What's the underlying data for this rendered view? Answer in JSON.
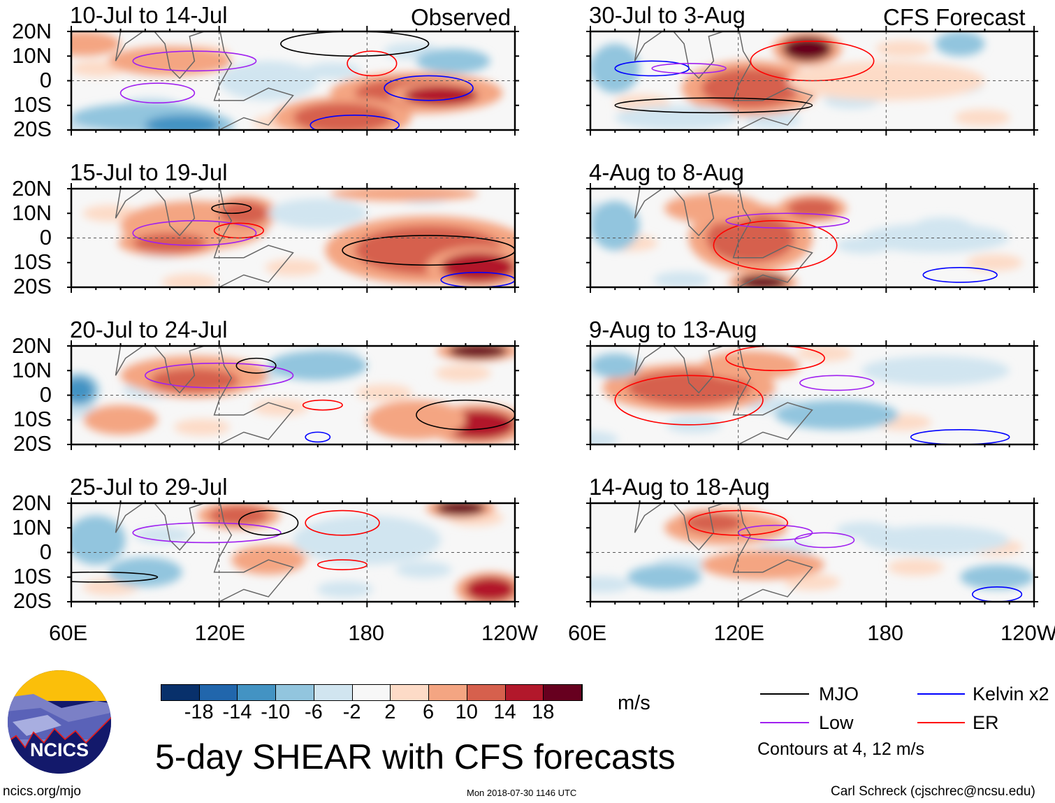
{
  "figure_title": "5-day SHEAR with CFS forecasts",
  "units": "m/s",
  "observed_label": "Observed",
  "forecast_label": "CFS Forecast",
  "panels_left": [
    {
      "title": "10-Jul to 14-Jul"
    },
    {
      "title": "15-Jul to 19-Jul"
    },
    {
      "title": "20-Jul to 24-Jul"
    },
    {
      "title": "25-Jul to 29-Jul"
    }
  ],
  "panels_right": [
    {
      "title": "30-Jul to 3-Aug"
    },
    {
      "title": "4-Aug to 8-Aug"
    },
    {
      "title": "9-Aug to 13-Aug"
    },
    {
      "title": "14-Aug to 18-Aug"
    }
  ],
  "lat_labels": [
    "20N",
    "10N",
    "0",
    "10S",
    "20S"
  ],
  "lon_labels": [
    "60E",
    "120E",
    "180",
    "120W"
  ],
  "colorbar": {
    "ticks": [
      "-18",
      "-14",
      "-10",
      "-6",
      "-2",
      "2",
      "6",
      "10",
      "14",
      "18"
    ],
    "colors": [
      "#08306b",
      "#2166ac",
      "#4393c3",
      "#92c5de",
      "#d1e5f0",
      "#f7f7f7",
      "#fddbc7",
      "#f4a582",
      "#d6604d",
      "#b2182b",
      "#67001f"
    ]
  },
  "legend": {
    "items": [
      {
        "label": "MJO",
        "color": "#000000"
      },
      {
        "label": "Kelvin x2",
        "color": "#0000ff"
      },
      {
        "label": "Low",
        "color": "#a020f0"
      },
      {
        "label": "ER",
        "color": "#ff0000"
      }
    ],
    "note": "Contours at 4, 12 m/s"
  },
  "footer": {
    "url": "ncics.org/mjo",
    "timestamp": "Mon 2018-07-30 1146 UTC",
    "credit": "Carl Schreck (cjschrec@ncsu.edu)"
  },
  "logo_text": "NCICS",
  "chart_data": {
    "type": "heatmap",
    "units": "m/s",
    "lon_range": [
      60,
      240
    ],
    "lat_range": [
      -20,
      20
    ],
    "levels": [
      -18,
      -14,
      -10,
      -6,
      -2,
      2,
      6,
      10,
      14,
      18
    ],
    "contour_levels": [
      4,
      12
    ]
  }
}
